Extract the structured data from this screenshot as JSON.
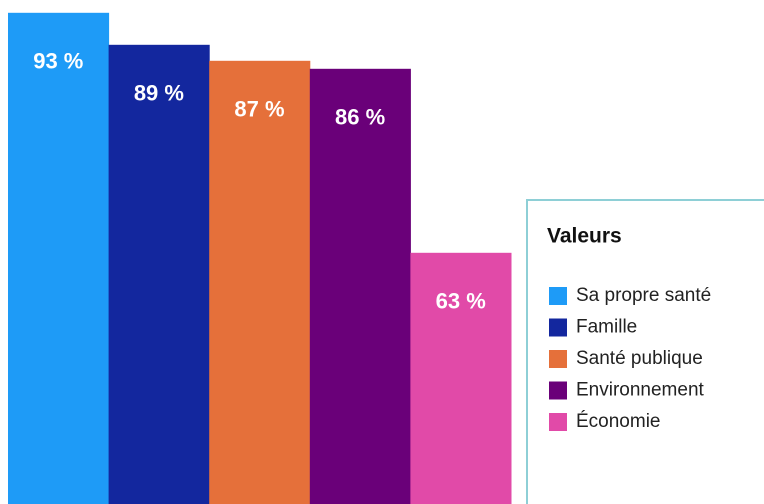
{
  "chart_data": {
    "type": "bar",
    "categories": [
      "Sa propre santé",
      "Famille",
      "Santé publique",
      "Environnement",
      "Économie"
    ],
    "values": [
      93,
      89,
      87,
      86,
      63
    ],
    "value_labels": [
      "93 %",
      "89 %",
      "87 %",
      "86 %",
      "63 %"
    ],
    "colors": [
      "#1e9bf7",
      "#13279e",
      "#e5703a",
      "#6a0079",
      "#e14aa8"
    ],
    "ylim": [
      31.6,
      94.6
    ],
    "legend": {
      "title": "Valeurs"
    }
  }
}
